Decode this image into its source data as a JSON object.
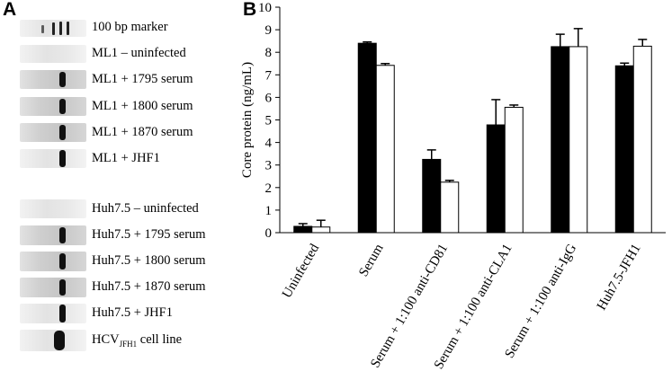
{
  "panel_a": {
    "letter": "A",
    "lanes": [
      {
        "label": "100 bp marker"
      },
      {
        "label": "ML1 – uninfected"
      },
      {
        "label": "ML1 + 1795 serum"
      },
      {
        "label": "ML1 + 1800 serum"
      },
      {
        "label": "ML1 + 1870 serum"
      },
      {
        "label": "ML1 + JHF1"
      },
      {
        "label": "Huh7.5 – uninfected"
      },
      {
        "label": "Huh7.5 + 1795 serum"
      },
      {
        "label": "Huh7.5 + 1800 serum"
      },
      {
        "label": "Huh7.5 + 1870 serum"
      },
      {
        "label": "Huh7.5 + JHF1"
      },
      {
        "label_main": "HCV",
        "label_sub": "JFH1",
        "label_tail": " cell line"
      }
    ]
  },
  "chart_data": {
    "letter": "B",
    "type": "bar",
    "title": "",
    "xlabel": "",
    "ylabel": "Core protein (ng/mL)",
    "ylim": [
      0,
      10
    ],
    "yticks": [
      0,
      1,
      2,
      3,
      4,
      5,
      6,
      7,
      8,
      9,
      10
    ],
    "categories": [
      "Uninfected",
      "Serum",
      "Serum + 1:100 anti-CD81",
      "Serum + 1:100 anti-CLA1",
      "Serum + 1:100 anti-IgG",
      "Huh7.5-JFH1"
    ],
    "series": [
      {
        "name": "filled",
        "color": "#000000",
        "values": [
          0.28,
          8.4,
          3.25,
          4.78,
          8.25,
          7.4
        ],
        "errors": [
          0.12,
          0.06,
          0.42,
          1.12,
          0.55,
          0.12
        ]
      },
      {
        "name": "open",
        "color": "#ffffff",
        "values": [
          0.25,
          7.42,
          2.24,
          5.56,
          8.25,
          8.27
        ],
        "errors": [
          0.3,
          0.08,
          0.08,
          0.1,
          0.8,
          0.3
        ]
      }
    ]
  }
}
